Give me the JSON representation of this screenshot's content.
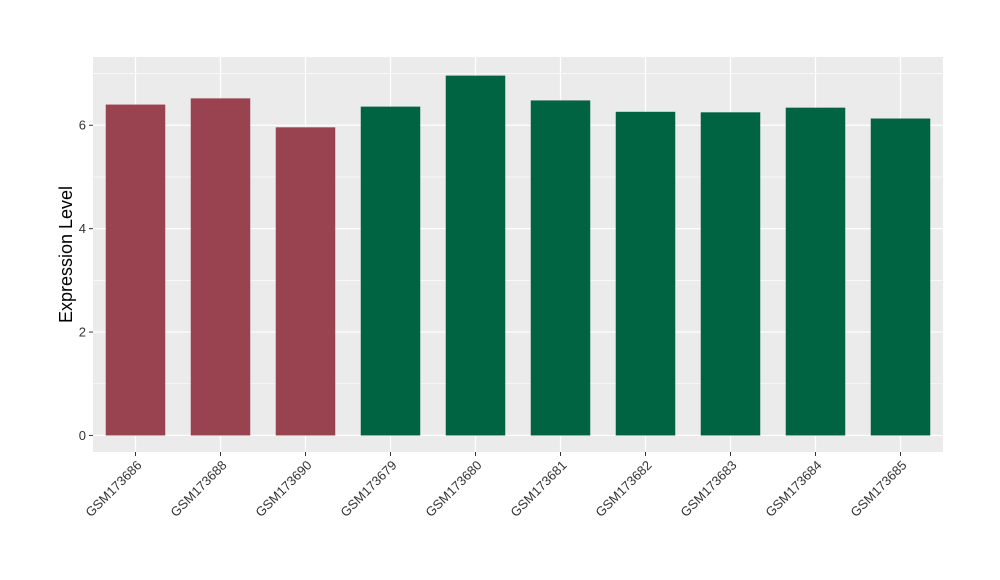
{
  "chart_data": {
    "type": "bar",
    "ylabel": "Expression Level",
    "xlabel": "",
    "categories": [
      "GSM173686",
      "GSM173688",
      "GSM173690",
      "GSM173679",
      "GSM173680",
      "GSM173681",
      "GSM173682",
      "GSM173683",
      "GSM173684",
      "GSM173685"
    ],
    "values": [
      6.4,
      6.52,
      5.96,
      6.36,
      6.96,
      6.48,
      6.26,
      6.25,
      6.34,
      6.13
    ],
    "bar_colors": [
      "#9a4350",
      "#9a4350",
      "#9a4350",
      "#006442",
      "#006442",
      "#006442",
      "#006442",
      "#006442",
      "#006442",
      "#006442"
    ],
    "ylim": [
      -0.32,
      7.32
    ],
    "yticks": [
      0,
      2,
      4,
      6
    ],
    "grid": true,
    "panel_background": "#ebebeb",
    "grid_color": "#ffffff"
  }
}
